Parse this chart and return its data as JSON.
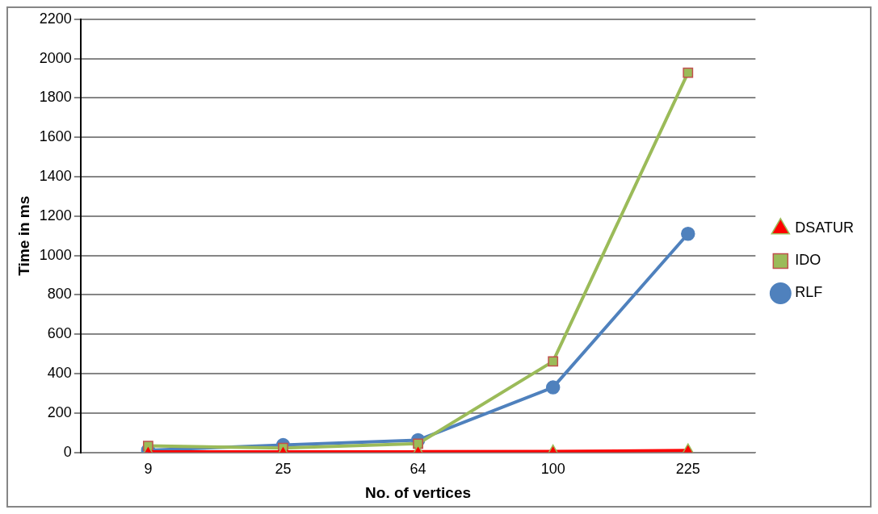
{
  "chart_data": {
    "type": "line",
    "xlabel": "No. of vertices",
    "ylabel": "Time in ms",
    "categories": [
      "9",
      "25",
      "64",
      "100",
      "225"
    ],
    "series": [
      {
        "name": "RLF",
        "color": "#4f81bd",
        "marker": "circle",
        "values": [
          11,
          37,
          62,
          330,
          1110
        ]
      },
      {
        "name": "IDO",
        "color": "#9bbb59",
        "marker": "square",
        "values": [
          33,
          22,
          44,
          462,
          1928
        ]
      },
      {
        "name": "DSATUR",
        "color": "#ff0000",
        "marker": "triangle",
        "values": [
          2,
          2,
          3,
          4,
          10
        ]
      }
    ],
    "ylim": [
      0,
      2200
    ],
    "yticks": [
      0,
      200,
      400,
      600,
      800,
      1000,
      1200,
      1400,
      1600,
      1800,
      2000,
      2200
    ],
    "grid": "y",
    "legend": "right",
    "line_style": "solid"
  }
}
